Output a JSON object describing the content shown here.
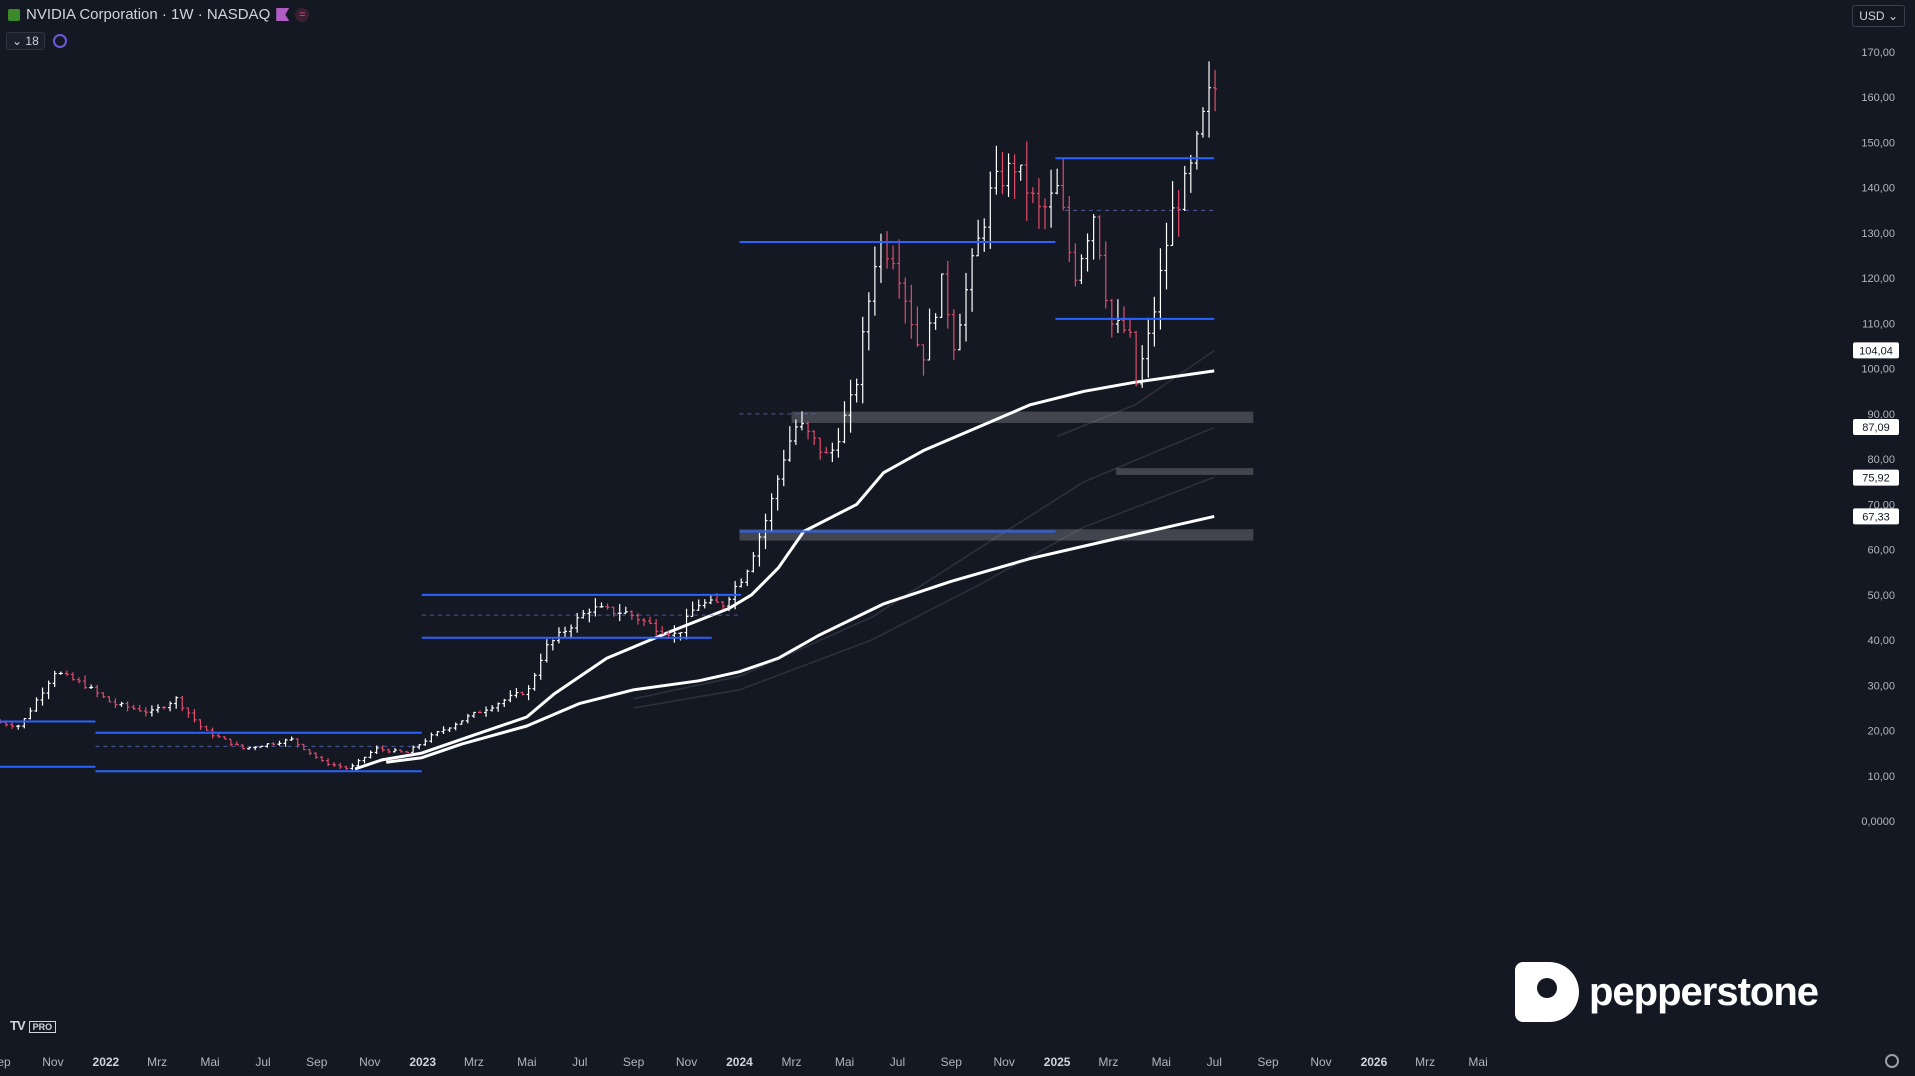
{
  "header": {
    "title": "NVIDIA Corporation · 1W · NASDAQ",
    "indicator_count": "18",
    "currency": "USD"
  },
  "colors": {
    "background": "#141823",
    "up_bar": "#ffffff",
    "down_bar": "#e04c6a",
    "level_line": "#2962ff",
    "ma_line": "#ffffff",
    "zone": "#4a4d55"
  },
  "icons": [
    "nvidia-logo-icon",
    "flag-icon",
    "equals-icon",
    "chevron-down-icon",
    "gear-icon",
    "settings-icon"
  ],
  "branding": {
    "platform": "TV PRO",
    "broker": "pepperstone"
  },
  "chart_data": {
    "type": "ohlc",
    "xlim": [
      "2021-09-01",
      "2026-06-01"
    ],
    "ylim": [
      0,
      170
    ],
    "y_ticks": [
      "0,0000",
      "10,00",
      "20,00",
      "30,00",
      "40,00",
      "50,00",
      "60,00",
      "70,00",
      "80,00",
      "90,00",
      "100,00",
      "110,00",
      "120,00",
      "130,00",
      "140,00",
      "150,00",
      "160,00",
      "170,00"
    ],
    "x_ticks": [
      {
        "label": "Sep",
        "date": "2021-09-01"
      },
      {
        "label": "Nov",
        "date": "2021-11-01"
      },
      {
        "label": "2022",
        "date": "2022-01-01"
      },
      {
        "label": "Mrz",
        "date": "2022-03-01"
      },
      {
        "label": "Mai",
        "date": "2022-05-01"
      },
      {
        "label": "Jul",
        "date": "2022-07-01"
      },
      {
        "label": "Sep",
        "date": "2022-09-01"
      },
      {
        "label": "Nov",
        "date": "2022-11-01"
      },
      {
        "label": "2023",
        "date": "2023-01-01"
      },
      {
        "label": "Mrz",
        "date": "2023-03-01"
      },
      {
        "label": "Mai",
        "date": "2023-05-01"
      },
      {
        "label": "Jul",
        "date": "2023-07-01"
      },
      {
        "label": "Sep",
        "date": "2023-09-01"
      },
      {
        "label": "Nov",
        "date": "2023-11-01"
      },
      {
        "label": "2024",
        "date": "2024-01-01"
      },
      {
        "label": "Mrz",
        "date": "2024-03-01"
      },
      {
        "label": "Mai",
        "date": "2024-05-01"
      },
      {
        "label": "Jul",
        "date": "2024-07-01"
      },
      {
        "label": "Sep",
        "date": "2024-09-01"
      },
      {
        "label": "Nov",
        "date": "2024-11-01"
      },
      {
        "label": "2025",
        "date": "2025-01-01"
      },
      {
        "label": "Mrz",
        "date": "2025-03-01"
      },
      {
        "label": "Mai",
        "date": "2025-05-01"
      },
      {
        "label": "Jul",
        "date": "2025-07-01"
      },
      {
        "label": "Sep",
        "date": "2025-09-01"
      },
      {
        "label": "Nov",
        "date": "2025-11-01"
      },
      {
        "label": "2026",
        "date": "2026-01-01"
      },
      {
        "label": "Mrz",
        "date": "2026-03-01"
      },
      {
        "label": "Mai",
        "date": "2026-05-01"
      }
    ],
    "price_anchors": [
      [
        "2021-09-01",
        22
      ],
      [
        "2021-10-01",
        21
      ],
      [
        "2021-11-10",
        33
      ],
      [
        "2021-12-15",
        30
      ],
      [
        "2022-01-15",
        26
      ],
      [
        "2022-03-01",
        24
      ],
      [
        "2022-03-30",
        27
      ],
      [
        "2022-05-01",
        20
      ],
      [
        "2022-06-15",
        16
      ],
      [
        "2022-08-10",
        18
      ],
      [
        "2022-09-15",
        13
      ],
      [
        "2022-10-15",
        11.5
      ],
      [
        "2022-11-15",
        16
      ],
      [
        "2022-12-20",
        15
      ],
      [
        "2023-01-20",
        19
      ],
      [
        "2023-03-01",
        23
      ],
      [
        "2023-04-15",
        27
      ],
      [
        "2023-05-10",
        29
      ],
      [
        "2023-05-28",
        38
      ],
      [
        "2023-06-20",
        42
      ],
      [
        "2023-07-20",
        47
      ],
      [
        "2023-09-01",
        46
      ],
      [
        "2023-10-01",
        43
      ],
      [
        "2023-10-28",
        41
      ],
      [
        "2023-11-20",
        48
      ],
      [
        "2023-12-20",
        48
      ],
      [
        "2024-01-15",
        55
      ],
      [
        "2024-02-10",
        68
      ],
      [
        "2024-03-01",
        82
      ],
      [
        "2024-03-15",
        88
      ],
      [
        "2024-04-20",
        80
      ],
      [
        "2024-05-20",
        95
      ],
      [
        "2024-06-15",
        128
      ],
      [
        "2024-07-05",
        125
      ],
      [
        "2024-08-05",
        102
      ],
      [
        "2024-08-30",
        120
      ],
      [
        "2024-09-10",
        105
      ],
      [
        "2024-10-01",
        122
      ],
      [
        "2024-10-25",
        140
      ],
      [
        "2024-11-20",
        145
      ],
      [
        "2024-12-20",
        134
      ],
      [
        "2025-01-10",
        140
      ],
      [
        "2025-01-27",
        120
      ],
      [
        "2025-02-20",
        135
      ],
      [
        "2025-03-10",
        110
      ],
      [
        "2025-04-01",
        108
      ],
      [
        "2025-04-08",
        96
      ],
      [
        "2025-04-25",
        108
      ],
      [
        "2025-05-20",
        134
      ],
      [
        "2025-06-10",
        143
      ],
      [
        "2025-06-25",
        155
      ],
      [
        "2025-07-05",
        162
      ]
    ],
    "levels": [
      {
        "price": 22,
        "start": "2021-09-01",
        "end": "2021-12-20"
      },
      {
        "price": 12,
        "start": "2021-09-01",
        "end": "2021-12-20"
      },
      {
        "price": 19.5,
        "start": "2021-12-20",
        "end": "2022-12-31"
      },
      {
        "price": 11,
        "start": "2021-12-20",
        "end": "2022-12-31"
      },
      {
        "price": 50,
        "start": "2022-12-31",
        "end": "2024-01-03"
      },
      {
        "price": 40.5,
        "start": "2022-12-31",
        "end": "2023-11-30"
      },
      {
        "price": 128,
        "start": "2024-01-01",
        "end": "2024-12-30"
      },
      {
        "price": 64,
        "start": "2024-01-01",
        "end": "2024-12-30"
      },
      {
        "price": 146.5,
        "start": "2024-12-30",
        "end": "2025-07-01"
      },
      {
        "price": 111,
        "start": "2024-12-30",
        "end": "2025-07-01"
      }
    ],
    "dashed_levels": [
      {
        "price": 45.5,
        "start": "2022-12-31",
        "end": "2024-01-01"
      },
      {
        "price": 90,
        "start": "2024-01-01",
        "end": "2024-04-01"
      },
      {
        "price": 135,
        "start": "2025-01-10",
        "end": "2025-07-01"
      },
      {
        "price": 16.5,
        "start": "2021-12-20",
        "end": "2022-12-31"
      }
    ],
    "zones": [
      {
        "low": 88,
        "high": 90.5,
        "start": "2024-03-01",
        "end": "2025-08-15"
      },
      {
        "low": 76.5,
        "high": 78,
        "start": "2025-03-10",
        "end": "2025-08-15"
      },
      {
        "low": 62,
        "high": 64.5,
        "start": "2024-01-01",
        "end": "2025-08-15"
      }
    ],
    "moving_averages": [
      {
        "points": [
          [
            "2022-10-15",
            11.5
          ],
          [
            "2022-11-15",
            13.5
          ],
          [
            "2022-12-31",
            15
          ],
          [
            "2023-03-01",
            19
          ],
          [
            "2023-05-01",
            23
          ],
          [
            "2023-06-01",
            28
          ],
          [
            "2023-08-01",
            36
          ],
          [
            "2023-10-15",
            42
          ],
          [
            "2023-12-20",
            47
          ],
          [
            "2024-01-15",
            50
          ],
          [
            "2024-02-15",
            56
          ],
          [
            "2024-03-15",
            64
          ],
          [
            "2024-05-15",
            70
          ],
          [
            "2024-06-15",
            77
          ],
          [
            "2024-08-01",
            82
          ],
          [
            "2024-10-01",
            87
          ],
          [
            "2024-12-01",
            92
          ],
          [
            "2025-02-01",
            95
          ],
          [
            "2025-04-01",
            97
          ],
          [
            "2025-07-01",
            99.5
          ]
        ],
        "emphasis": "bold"
      },
      {
        "points": [
          [
            "2022-11-20",
            13
          ],
          [
            "2022-12-31",
            14
          ],
          [
            "2023-02-15",
            17
          ],
          [
            "2023-05-01",
            21
          ],
          [
            "2023-07-01",
            26
          ],
          [
            "2023-09-01",
            29
          ],
          [
            "2023-11-15",
            31
          ],
          [
            "2024-01-01",
            33
          ],
          [
            "2024-02-15",
            36
          ],
          [
            "2024-04-01",
            41
          ],
          [
            "2024-06-15",
            48
          ],
          [
            "2024-09-01",
            53
          ],
          [
            "2024-12-01",
            58
          ],
          [
            "2025-03-01",
            62
          ],
          [
            "2025-07-01",
            67.33
          ]
        ],
        "emphasis": "bold"
      },
      {
        "points": [
          [
            "2023-09-01",
            27
          ],
          [
            "2024-01-01",
            32
          ],
          [
            "2024-06-01",
            45
          ],
          [
            "2024-10-01",
            60
          ],
          [
            "2025-02-01",
            75
          ],
          [
            "2025-07-01",
            87
          ]
        ],
        "emphasis": "faint"
      },
      {
        "points": [
          [
            "2023-09-01",
            25
          ],
          [
            "2024-01-01",
            29
          ],
          [
            "2024-06-01",
            40
          ],
          [
            "2024-10-01",
            52
          ],
          [
            "2025-02-01",
            65
          ],
          [
            "2025-07-01",
            76
          ]
        ],
        "emphasis": "faint"
      },
      {
        "points": [
          [
            "2025-01-01",
            85
          ],
          [
            "2025-04-01",
            92
          ],
          [
            "2025-07-01",
            104
          ]
        ],
        "emphasis": "faint"
      }
    ],
    "price_labels": [
      "104,04",
      "87,09",
      "75,92",
      "67,33"
    ]
  }
}
